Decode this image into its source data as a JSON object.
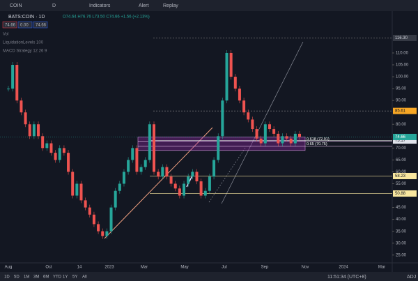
{
  "toolbar": {
    "symbol": "COIN",
    "interval": "D",
    "buttons": [
      "Indicators",
      "Alert",
      "Replay"
    ]
  },
  "legend": {
    "symbol": "BATS:COIN · 1D",
    "ohlc": "O74.64 H76.76 L73.50 C74.66 +1.56 (+2.13%)",
    "inputs": [
      "74.66",
      "0.00",
      "74.66"
    ],
    "indicators": [
      "Vol",
      "LiquidationLevels 100",
      "MACD Strategy 12 26 9"
    ]
  },
  "chart_data": {
    "type": "candlestick",
    "closes": [
      95,
      105,
      90,
      85,
      80,
      75,
      80,
      75,
      70,
      72,
      68,
      65,
      70,
      68,
      60,
      50,
      55,
      48,
      45,
      42,
      38,
      35,
      33,
      35,
      45,
      52,
      55,
      60,
      65,
      70,
      60,
      62,
      65,
      80,
      60,
      58,
      62,
      58,
      55,
      53,
      50,
      55,
      58,
      60,
      56,
      50,
      52,
      58,
      65,
      75,
      90,
      110,
      100,
      95,
      90,
      85,
      82,
      78,
      74,
      72,
      80,
      78,
      76,
      72,
      75,
      74,
      72,
      76,
      74.66
    ],
    "ylim": [
      22,
      127
    ],
    "yticks": [
      {
        "value": 25,
        "label": "25.00"
      },
      {
        "value": 30,
        "label": "30.00"
      },
      {
        "value": 35,
        "label": "35.00"
      },
      {
        "value": 40,
        "label": "40.00"
      },
      {
        "value": 45,
        "label": "45.00"
      },
      {
        "value": 55,
        "label": "55.00"
      },
      {
        "value": 60,
        "label": "60.00"
      },
      {
        "value": 65,
        "label": "65.00"
      },
      {
        "value": 70,
        "label": "70.00"
      },
      {
        "value": 80,
        "label": "80.00"
      },
      {
        "value": 90,
        "label": "90.00"
      },
      {
        "value": 95,
        "label": "95.00"
      },
      {
        "value": 100,
        "label": "100.00"
      },
      {
        "value": 105,
        "label": "105.00"
      },
      {
        "value": 110,
        "label": "110.00"
      }
    ],
    "xticks": [
      "Aug",
      "Oct",
      "14",
      "2023",
      "Mar",
      "May",
      "Jul",
      "Sep",
      "Nov",
      "2024",
      "Mar"
    ],
    "levels": [
      {
        "value": 116.3,
        "label": "116.30"
      },
      {
        "value": 85.61,
        "label": "85.61"
      },
      {
        "value": 58.23,
        "label": "58.23"
      },
      {
        "value": 50.88,
        "label": "50.88"
      },
      {
        "value": 73.17,
        "label": "73.17"
      }
    ],
    "current": {
      "value": 74.66,
      "label": "74.66"
    },
    "fib": [
      {
        "value": 72.91,
        "label": "0.618 (72.91)"
      },
      {
        "value": 70.75,
        "label": "0.65 (70.75)"
      }
    ]
  },
  "bottom": {
    "ranges": [
      "1D",
      "5D",
      "1M",
      "3M",
      "6M",
      "YTD",
      "1Y",
      "5Y",
      "All"
    ],
    "clock": "11:51:34 (UTC+8)",
    "adj": "ADJ"
  }
}
